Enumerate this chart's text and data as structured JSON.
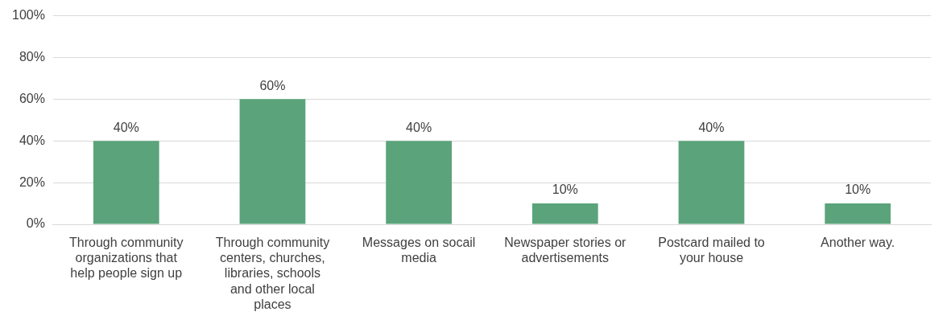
{
  "chart_data": {
    "type": "bar",
    "categories": [
      "Through community organizations that help people sign up",
      "Through community centers, churches, libraries, schools and other local places",
      "Messages on socail media",
      "Newspaper stories or advertisements",
      "Postcard mailed to your house",
      "Another way."
    ],
    "values": [
      40,
      60,
      40,
      10,
      40,
      10
    ],
    "value_labels": [
      "40%",
      "60%",
      "40%",
      "10%",
      "40%",
      "10%"
    ],
    "color": "#5ba47b",
    "ylim": [
      0,
      100
    ],
    "yticks": [
      {
        "value": 0,
        "label": "0%"
      },
      {
        "value": 20,
        "label": "20%"
      },
      {
        "value": 40,
        "label": "40%"
      },
      {
        "value": 60,
        "label": "60%"
      },
      {
        "value": 80,
        "label": "80%"
      },
      {
        "value": 100,
        "label": "100%"
      }
    ],
    "grid": "y",
    "legend": false
  }
}
